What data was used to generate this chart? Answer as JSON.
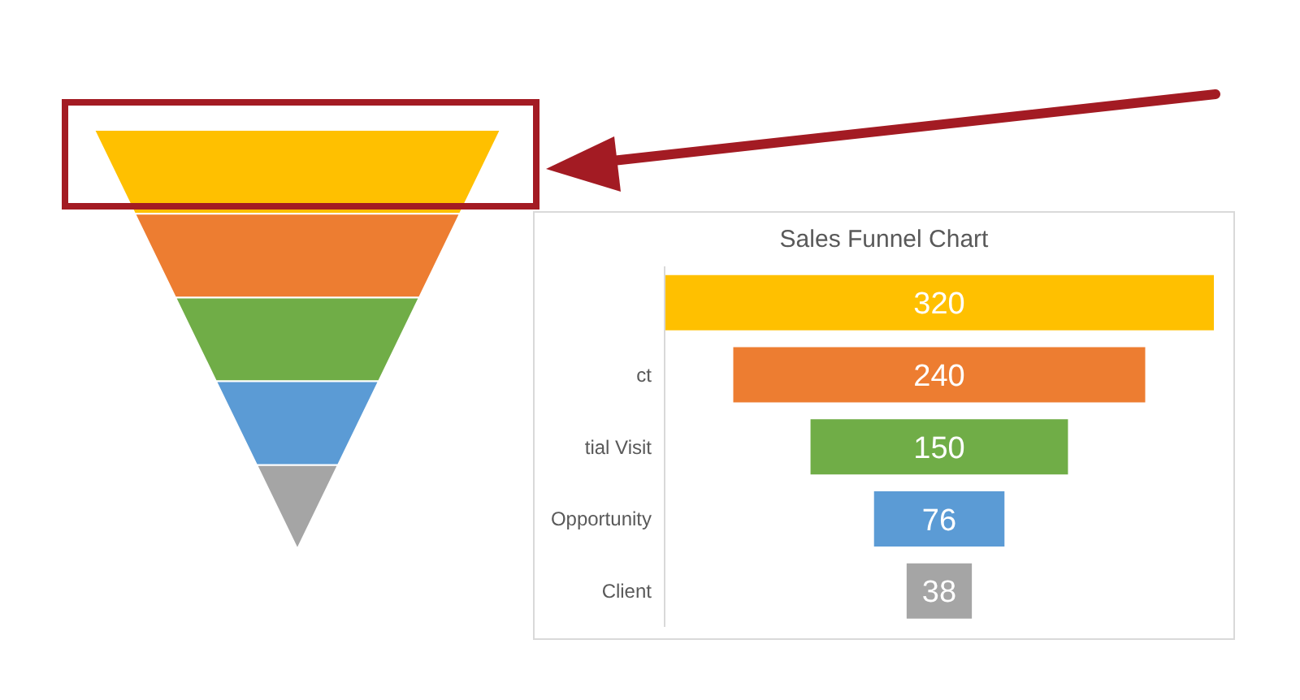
{
  "chart_data": {
    "type": "other",
    "title": "Sales Funnel Chart",
    "categories": [
      null,
      "ct",
      "tial Visit",
      "Opportunity",
      "Client"
    ],
    "values": [
      320,
      240,
      150,
      76,
      38
    ],
    "data_labels": true
  }
}
